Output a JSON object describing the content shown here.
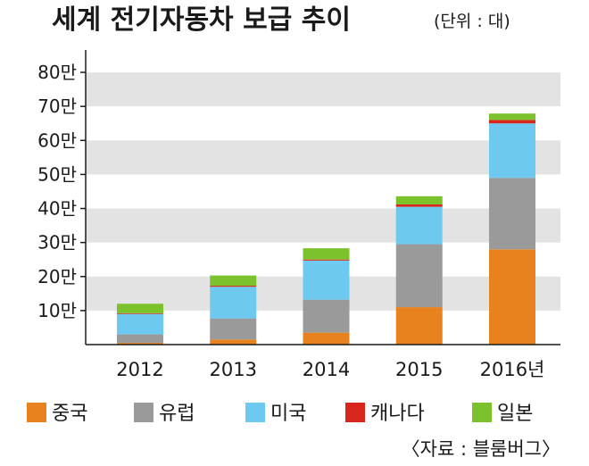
{
  "chart_data": {
    "type": "bar",
    "stacked": true,
    "title": "세계 전기자동차 보급 추이",
    "subtitle": "(단위 : 대)",
    "categories": [
      "2012",
      "2013",
      "2014",
      "2015",
      "2016년"
    ],
    "y_tick_labels": [
      "10만",
      "20만",
      "30만",
      "40만",
      "50만",
      "60만",
      "70만",
      "80만"
    ],
    "y_ticks": [
      100000,
      200000,
      300000,
      400000,
      500000,
      600000,
      700000,
      800000
    ],
    "ylim": [
      0,
      850000
    ],
    "series": [
      {
        "name": "중국",
        "color": "#e8821e",
        "values": [
          5000,
          15000,
          35000,
          110000,
          280000
        ]
      },
      {
        "name": "유럽",
        "color": "#9a9a9a",
        "values": [
          25000,
          62000,
          97000,
          185000,
          210000
        ]
      },
      {
        "name": "미국",
        "color": "#6ec9f0",
        "values": [
          60000,
          93000,
          115000,
          110000,
          160000
        ]
      },
      {
        "name": "캐나다",
        "color": "#d9261c",
        "values": [
          2000,
          3000,
          3000,
          7000,
          10000
        ]
      },
      {
        "name": "일본",
        "color": "#7cc22d",
        "values": [
          28000,
          30000,
          33000,
          24000,
          19000
        ]
      }
    ],
    "legend_position": "bottom",
    "grid": "alternating horizontal bands",
    "source": "〈자료 : 블룸버그〉"
  }
}
